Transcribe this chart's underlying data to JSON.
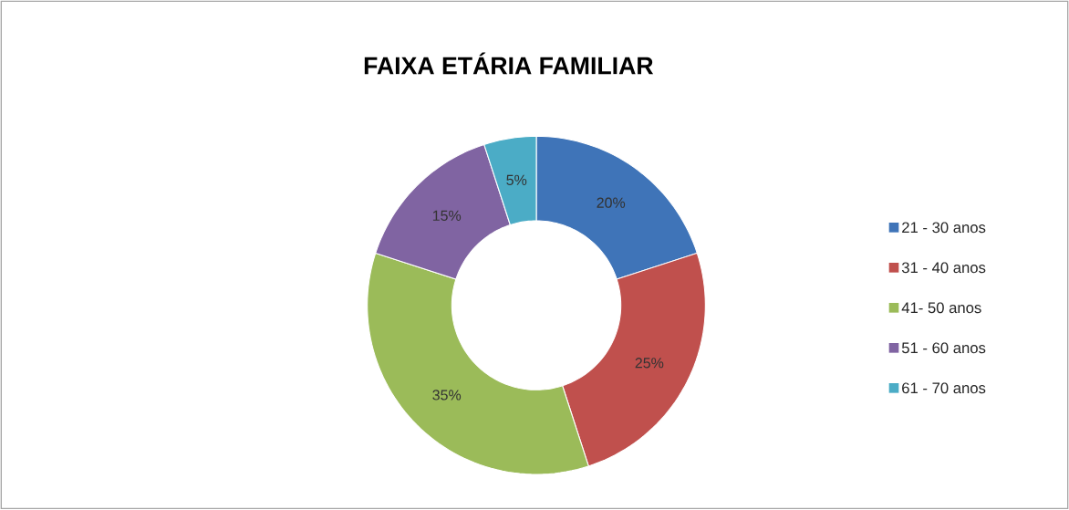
{
  "chart_data": {
    "type": "donut",
    "title": "FAIXA ETÁRIA FAMILIAR",
    "categories": [
      "21 - 30 anos",
      "31 - 40 anos",
      "41- 50 anos",
      "51 - 60 anos",
      "61 - 70 anos"
    ],
    "values": [
      20,
      25,
      35,
      15,
      5
    ],
    "colors": [
      "#3f74b8",
      "#c0504d",
      "#9bbb59",
      "#8064a2",
      "#4bacc6"
    ],
    "value_labels": [
      "20%",
      "25%",
      "35%",
      "15%",
      "5%"
    ],
    "legend": "right"
  }
}
